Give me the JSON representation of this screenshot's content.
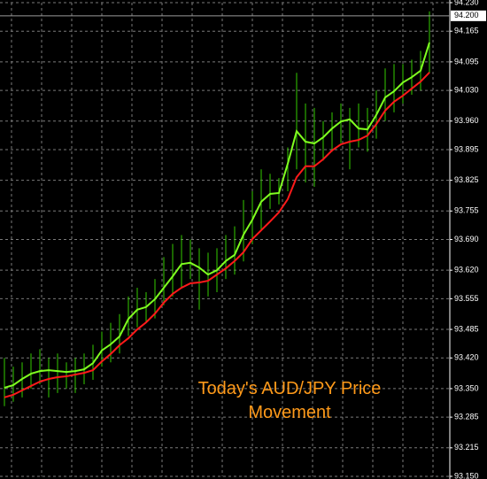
{
  "chart_data": {
    "type": "range-bar",
    "annotation": "Today's AUD/JPY Price Movement",
    "annotation_color": "#ff9a1a",
    "bar_color": "#33cc00",
    "high": [
      93.42,
      93.4,
      93.41,
      93.43,
      93.44,
      93.42,
      93.43,
      93.41,
      93.42,
      93.43,
      93.45,
      93.48,
      93.5,
      93.52,
      93.56,
      93.58,
      93.57,
      93.6,
      93.65,
      93.68,
      93.7,
      93.69,
      93.67,
      93.66,
      93.67,
      93.7,
      93.72,
      93.78,
      93.8,
      93.85,
      93.84,
      93.83,
      93.9,
      94.07,
      94.0,
      93.99,
      93.96,
      93.98,
      94.0,
      93.99,
      94.0,
      93.99,
      94.03,
      94.08,
      94.09,
      94.09,
      94.1,
      94.12,
      94.21
    ],
    "low": [
      93.31,
      93.32,
      93.33,
      93.35,
      93.36,
      93.33,
      93.34,
      93.35,
      93.34,
      93.36,
      93.37,
      93.4,
      93.41,
      93.43,
      93.47,
      93.49,
      93.5,
      93.51,
      93.54,
      93.56,
      93.58,
      93.6,
      93.53,
      93.56,
      93.57,
      93.6,
      93.61,
      93.64,
      93.68,
      93.71,
      93.76,
      93.77,
      93.8,
      93.85,
      93.82,
      93.81,
      93.87,
      93.89,
      93.91,
      93.85,
      93.9,
      93.89,
      93.92,
      93.96,
      93.98,
      94.0,
      94.02,
      94.03,
      94.07
    ],
    "lines": [
      {
        "color": "#80ff20",
        "values": [
          93.352,
          93.358,
          93.372,
          93.384,
          93.39,
          93.392,
          93.39,
          93.388,
          93.39,
          93.394,
          93.408,
          93.437,
          93.451,
          93.469,
          93.509,
          93.53,
          93.536,
          93.554,
          93.58,
          93.606,
          93.634,
          93.637,
          93.626,
          93.61,
          93.62,
          93.641,
          93.655,
          93.701,
          93.735,
          93.776,
          93.794,
          93.796,
          93.863,
          93.937,
          93.913,
          93.909,
          93.923,
          93.943,
          93.959,
          93.964,
          93.943,
          93.941,
          93.974,
          94.014,
          94.028,
          94.048,
          94.06,
          94.075,
          94.139
        ]
      },
      {
        "color": "#ff1a1a",
        "values": [
          93.33,
          93.336,
          93.346,
          93.356,
          93.366,
          93.372,
          93.376,
          93.378,
          93.382,
          93.386,
          93.392,
          93.412,
          93.429,
          93.449,
          93.465,
          93.485,
          93.501,
          93.521,
          93.546,
          93.566,
          93.58,
          93.59,
          93.592,
          93.596,
          93.61,
          93.624,
          93.641,
          93.661,
          93.691,
          93.711,
          93.731,
          93.752,
          93.782,
          93.832,
          93.857,
          93.857,
          93.873,
          93.893,
          93.907,
          93.913,
          93.917,
          93.927,
          93.953,
          93.984,
          94.004,
          94.018,
          94.034,
          94.05,
          94.071
        ]
      }
    ],
    "current_price": {
      "value": 94.2,
      "label": "94.200"
    },
    "ylim": [
      93.15,
      94.23
    ],
    "yticks": [
      {
        "value": 93.15,
        "label": "93.150"
      },
      {
        "value": 93.215,
        "label": "93.215"
      },
      {
        "value": 93.285,
        "label": "93.285"
      },
      {
        "value": 93.35,
        "label": "93.350"
      },
      {
        "value": 93.42,
        "label": "93.420"
      },
      {
        "value": 93.485,
        "label": "93.485"
      },
      {
        "value": 93.555,
        "label": "93.555"
      },
      {
        "value": 93.62,
        "label": "93.620"
      },
      {
        "value": 93.69,
        "label": "93.690"
      },
      {
        "value": 93.755,
        "label": "93.755"
      },
      {
        "value": 93.825,
        "label": "93.825"
      },
      {
        "value": 93.895,
        "label": "93.895"
      },
      {
        "value": 93.96,
        "label": "93.960"
      },
      {
        "value": 94.03,
        "label": "94.030"
      },
      {
        "value": 94.095,
        "label": "94.095"
      },
      {
        "value": 94.165,
        "label": "94.165"
      },
      {
        "value": 94.23,
        "label": "94.230"
      }
    ],
    "grid": true
  }
}
